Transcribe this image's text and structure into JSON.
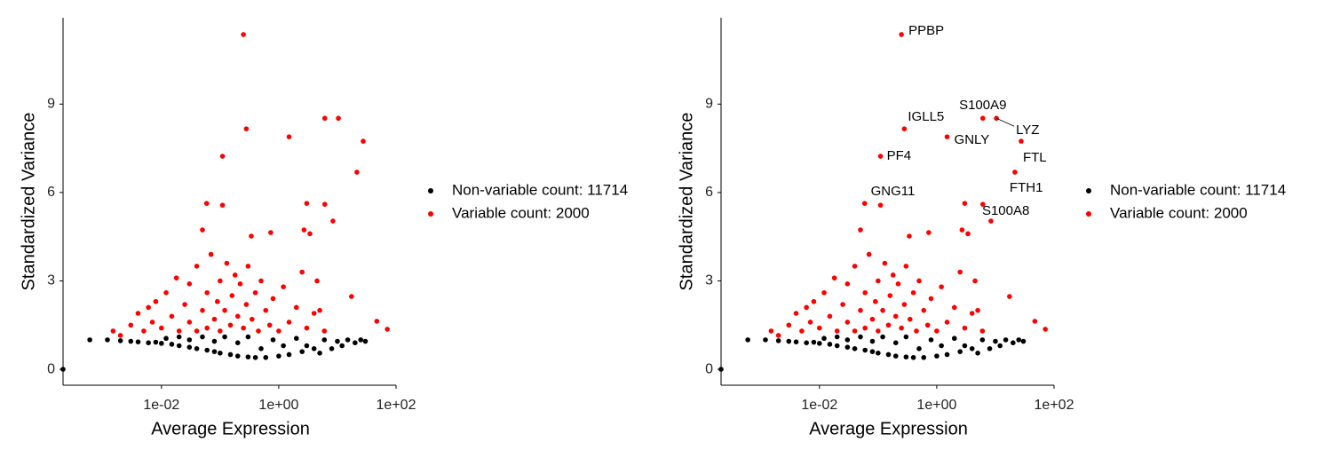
{
  "chart_data": [
    {
      "type": "scatter",
      "xlabel": "Average Expression",
      "ylabel": "Standardized Variance",
      "xscale": "log",
      "xlim": [
        0.00021,
        100
      ],
      "xticks": [
        {
          "value": 0.01,
          "label": "1e-02"
        },
        {
          "value": 1,
          "label": "1e+00"
        },
        {
          "value": 100,
          "label": "1e+02"
        }
      ],
      "ylim": [
        -0.54,
        11.93
      ],
      "yticks": [
        0,
        3,
        6,
        9
      ],
      "legend_position": "right",
      "series": [
        {
          "name": "Non-variable count: 11714",
          "color": "#000000",
          "x": [
            0.00021,
            0.0006,
            0.0012,
            0.002,
            0.003,
            0.004,
            0.006,
            0.008,
            0.01,
            0.012,
            0.015,
            0.02,
            0.02,
            0.03,
            0.03,
            0.04,
            0.05,
            0.06,
            0.08,
            0.08,
            0.1,
            0.12,
            0.15,
            0.2,
            0.2,
            0.3,
            0.3,
            0.4,
            0.5,
            0.6,
            0.8,
            1,
            1.2,
            1.5,
            2,
            2.5,
            3,
            4,
            5,
            6,
            8,
            10,
            12,
            15,
            20,
            25,
            30
          ],
          "values": [
            0,
            1.0,
            1.0,
            0.97,
            0.95,
            0.93,
            0.9,
            0.92,
            0.88,
            1.05,
            0.85,
            0.8,
            1.1,
            0.75,
            1.0,
            0.7,
            1.1,
            0.65,
            0.6,
            0.95,
            0.55,
            1.1,
            0.5,
            0.45,
            0.9,
            0.42,
            1.1,
            0.4,
            0.7,
            0.4,
            1.0,
            0.45,
            0.8,
            0.5,
            1.05,
            0.6,
            0.8,
            0.7,
            0.55,
            1.0,
            0.7,
            0.95,
            0.8,
            1.0,
            0.9,
            1.0,
            0.95
          ]
        },
        {
          "name": "Variable count: 2000",
          "color": "#ff0000",
          "x": [
            0.25,
            6.1,
            10.4,
            0.28,
            1.5,
            27.5,
            0.11,
            21.5,
            0.11,
            8.4,
            0.059,
            3.0,
            6.1,
            2.7,
            3.4,
            0.34,
            0.73,
            0.05,
            17.4,
            47,
            71,
            4.5,
            0.0015,
            0.002,
            0.003,
            0.004,
            0.005,
            0.006,
            0.007,
            0.008,
            0.01,
            0.012,
            0.015,
            0.018,
            0.02,
            0.025,
            0.03,
            0.03,
            0.04,
            0.04,
            0.05,
            0.06,
            0.06,
            0.07,
            0.08,
            0.09,
            0.1,
            0.1,
            0.12,
            0.13,
            0.15,
            0.16,
            0.18,
            0.2,
            0.22,
            0.25,
            0.28,
            0.3,
            0.35,
            0.4,
            0.45,
            0.5,
            0.6,
            0.7,
            0.8,
            1.0,
            1.2,
            1.5,
            2.0,
            2.5,
            3.0,
            4,
            5,
            6
          ],
          "values": [
            11.36,
            8.52,
            8.52,
            8.16,
            7.89,
            7.74,
            7.23,
            6.69,
            5.57,
            5.03,
            5.63,
            5.63,
            5.6,
            4.73,
            4.6,
            4.52,
            4.64,
            4.73,
            2.47,
            1.63,
            1.36,
            3.0,
            1.3,
            1.15,
            1.5,
            1.9,
            1.3,
            2.1,
            1.6,
            2.3,
            1.4,
            2.6,
            1.8,
            3.1,
            1.3,
            2.2,
            1.6,
            2.9,
            1.3,
            3.5,
            2.0,
            2.6,
            1.4,
            3.9,
            1.7,
            2.3,
            3.0,
            1.3,
            2.0,
            3.6,
            1.5,
            2.5,
            3.2,
            1.8,
            2.9,
            1.4,
            2.2,
            3.5,
            1.7,
            2.6,
            1.3,
            3.0,
            2.0,
            1.5,
            2.4,
            1.3,
            2.8,
            1.6,
            2.1,
            3.3,
            1.4,
            1.9,
            2.0,
            1.3
          ]
        }
      ]
    },
    {
      "type": "scatter",
      "xlabel": "Average Expression",
      "ylabel": "Standardized Variance",
      "xscale": "log",
      "xlim": [
        0.00021,
        100
      ],
      "xticks": [
        {
          "value": 0.01,
          "label": "1e-02"
        },
        {
          "value": 1,
          "label": "1e+00"
        },
        {
          "value": 100,
          "label": "1e+02"
        }
      ],
      "ylim": [
        -0.54,
        11.93
      ],
      "yticks": [
        0,
        3,
        6,
        9
      ],
      "legend_position": "right",
      "series": [
        {
          "name": "Non-variable count: 11714",
          "color": "#000000",
          "x": [
            0.00021,
            0.0006,
            0.0012,
            0.002,
            0.003,
            0.004,
            0.006,
            0.008,
            0.01,
            0.012,
            0.015,
            0.02,
            0.02,
            0.03,
            0.03,
            0.04,
            0.05,
            0.06,
            0.08,
            0.08,
            0.1,
            0.12,
            0.15,
            0.2,
            0.2,
            0.3,
            0.3,
            0.4,
            0.5,
            0.6,
            0.8,
            1,
            1.2,
            1.5,
            2,
            2.5,
            3,
            4,
            5,
            6,
            8,
            10,
            12,
            15,
            20,
            25,
            30
          ],
          "values": [
            0,
            1.0,
            1.0,
            0.97,
            0.95,
            0.93,
            0.9,
            0.92,
            0.88,
            1.05,
            0.85,
            0.8,
            1.1,
            0.75,
            1.0,
            0.7,
            1.1,
            0.65,
            0.6,
            0.95,
            0.55,
            1.1,
            0.5,
            0.45,
            0.9,
            0.42,
            1.1,
            0.4,
            0.7,
            0.4,
            1.0,
            0.45,
            0.8,
            0.5,
            1.05,
            0.6,
            0.8,
            0.7,
            0.55,
            1.0,
            0.7,
            0.95,
            0.8,
            1.0,
            0.9,
            1.0,
            0.95
          ]
        },
        {
          "name": "Variable count: 2000",
          "color": "#ff0000",
          "x": [
            0.25,
            6.1,
            10.4,
            0.28,
            1.5,
            27.5,
            0.11,
            21.5,
            0.11,
            8.4,
            0.059,
            3.0,
            6.1,
            2.7,
            3.4,
            0.34,
            0.73,
            0.05,
            17.4,
            47,
            71,
            4.5,
            0.0015,
            0.002,
            0.003,
            0.004,
            0.005,
            0.006,
            0.007,
            0.008,
            0.01,
            0.012,
            0.015,
            0.018,
            0.02,
            0.025,
            0.03,
            0.03,
            0.04,
            0.04,
            0.05,
            0.06,
            0.06,
            0.07,
            0.08,
            0.09,
            0.1,
            0.1,
            0.12,
            0.13,
            0.15,
            0.16,
            0.18,
            0.2,
            0.22,
            0.25,
            0.28,
            0.3,
            0.35,
            0.4,
            0.45,
            0.5,
            0.6,
            0.7,
            0.8,
            1.0,
            1.2,
            1.5,
            2.0,
            2.5,
            3.0,
            4,
            5,
            6
          ],
          "values": [
            11.36,
            8.52,
            8.52,
            8.16,
            7.89,
            7.74,
            7.23,
            6.69,
            5.57,
            5.03,
            5.63,
            5.63,
            5.6,
            4.73,
            4.6,
            4.52,
            4.64,
            4.73,
            2.47,
            1.63,
            1.36,
            3.0,
            1.3,
            1.15,
            1.5,
            1.9,
            1.3,
            2.1,
            1.6,
            2.3,
            1.4,
            2.6,
            1.8,
            3.1,
            1.3,
            2.2,
            1.6,
            2.9,
            1.3,
            3.5,
            2.0,
            2.6,
            1.4,
            3.9,
            1.7,
            2.3,
            3.0,
            1.3,
            2.0,
            3.6,
            1.5,
            2.5,
            3.2,
            1.8,
            2.9,
            1.4,
            2.2,
            3.5,
            1.7,
            2.6,
            1.3,
            3.0,
            2.0,
            1.5,
            2.4,
            1.3,
            2.8,
            1.6,
            2.1,
            3.3,
            1.4,
            1.9,
            2.0,
            1.3
          ],
          "labels": [
            "PPBP",
            "S100A9",
            "LYZ",
            "IGLL5",
            "GNLY",
            "FTL",
            "PF4",
            "FTH1",
            "GNG11",
            "S100A8",
            null,
            null,
            null,
            null,
            null,
            null,
            null,
            null,
            null,
            null,
            null,
            null,
            null,
            null,
            null,
            null,
            null,
            null,
            null,
            null,
            null,
            null,
            null,
            null,
            null,
            null,
            null,
            null,
            null,
            null,
            null,
            null,
            null,
            null,
            null,
            null,
            null,
            null,
            null,
            null,
            null,
            null,
            null,
            null,
            null,
            null,
            null,
            null,
            null,
            null,
            null,
            null,
            null,
            null,
            null,
            null,
            null,
            null,
            null,
            null,
            null,
            null,
            null,
            null
          ]
        }
      ]
    }
  ]
}
